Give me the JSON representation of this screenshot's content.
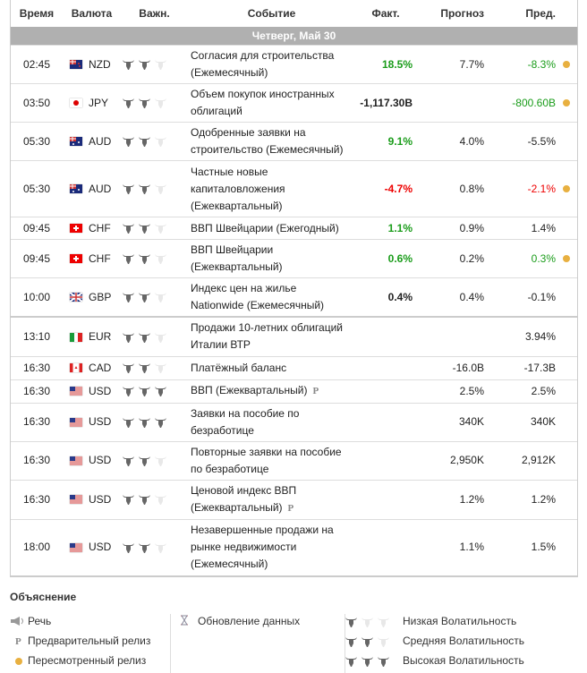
{
  "headers": {
    "time": "Время",
    "currency": "Валюта",
    "importance": "Важн.",
    "event": "Событие",
    "actual": "Факт.",
    "forecast": "Прогноз",
    "previous": "Пред."
  },
  "day": "Четверг, Май 30",
  "colors": {
    "green": "#1a9c1a",
    "red": "#e00000",
    "revised_dot": "#e8b040",
    "bull_on": "#666666",
    "bull_off": "#e8e8e8"
  },
  "rows": [
    {
      "time": "02:45",
      "currency": "NZD",
      "flag": "nz",
      "bulls": 2,
      "event": "Согласия для строительства (Ежемесячный)",
      "actual": "18.5%",
      "actual_color": "green",
      "forecast": "7.7%",
      "previous": "-8.3%",
      "previous_color": "green",
      "revised": true
    },
    {
      "time": "03:50",
      "currency": "JPY",
      "flag": "jp",
      "bulls": 2,
      "event": "Объем покупок иностранных облигаций",
      "actual": "-1,117.30B",
      "actual_color": "",
      "forecast": "",
      "previous": "-800.60B",
      "previous_color": "green",
      "revised": true
    },
    {
      "time": "05:30",
      "currency": "AUD",
      "flag": "au",
      "bulls": 2,
      "event": "Одобренные заявки на строительство (Ежемесячный)",
      "actual": "9.1%",
      "actual_color": "green",
      "forecast": "4.0%",
      "previous": "-5.5%",
      "previous_color": "",
      "revised": false
    },
    {
      "time": "05:30",
      "currency": "AUD",
      "flag": "au",
      "bulls": 2,
      "event": "Частные новые капиталовложения (Ежеквартальный)",
      "actual": "-4.7%",
      "actual_color": "red",
      "forecast": "0.8%",
      "previous": "-2.1%",
      "previous_color": "red",
      "revised": true
    },
    {
      "time": "09:45",
      "currency": "CHF",
      "flag": "ch",
      "bulls": 2,
      "event": "ВВП Швейцарии (Ежегодный)",
      "actual": "1.1%",
      "actual_color": "green",
      "forecast": "0.9%",
      "previous": "1.4%",
      "previous_color": "",
      "revised": false
    },
    {
      "time": "09:45",
      "currency": "CHF",
      "flag": "ch",
      "bulls": 2,
      "event": "ВВП Швейцарии (Ежеквартальный)",
      "actual": "0.6%",
      "actual_color": "green",
      "forecast": "0.2%",
      "previous": "0.3%",
      "previous_color": "green",
      "revised": true
    },
    {
      "time": "10:00",
      "currency": "GBP",
      "flag": "gb",
      "bulls": 2,
      "event": "Индекс цен на жилье Nationwide (Ежемесячный)",
      "actual": "0.4%",
      "actual_color": "",
      "forecast": "0.4%",
      "previous": "-0.1%",
      "previous_color": "",
      "revised": false
    },
    {
      "time": "13:10",
      "currency": "EUR",
      "flag": "it",
      "bulls": 2,
      "event": "Продажи 10-летних облигаций Италии ВТР",
      "actual": "",
      "actual_color": "",
      "forecast": "",
      "previous": "3.94%",
      "previous_color": "",
      "revised": false,
      "thick": true
    },
    {
      "time": "16:30",
      "currency": "CAD",
      "flag": "ca",
      "bulls": 2,
      "event": "Платёжный баланс",
      "actual": "",
      "actual_color": "",
      "forecast": "-16.0B",
      "previous": "-17.3B",
      "previous_color": "",
      "revised": false
    },
    {
      "time": "16:30",
      "currency": "USD",
      "flag": "us",
      "bulls": 3,
      "event": "ВВП (Ежеквартальный)",
      "prelim": "P",
      "actual": "",
      "actual_color": "",
      "forecast": "2.5%",
      "previous": "2.5%",
      "previous_color": "",
      "revised": false
    },
    {
      "time": "16:30",
      "currency": "USD",
      "flag": "us",
      "bulls": 3,
      "event": "Заявки на пособие по безработице",
      "actual": "",
      "actual_color": "",
      "forecast": "340K",
      "previous": "340K",
      "previous_color": "",
      "revised": false
    },
    {
      "time": "16:30",
      "currency": "USD",
      "flag": "us",
      "bulls": 2,
      "event": "Повторные заявки на пособие по безработице",
      "actual": "",
      "actual_color": "",
      "forecast": "2,950K",
      "previous": "2,912K",
      "previous_color": "",
      "revised": false
    },
    {
      "time": "16:30",
      "currency": "USD",
      "flag": "us",
      "bulls": 2,
      "event": "Ценовой индекс ВВП (Ежеквартальный)",
      "prelim": "P",
      "actual": "",
      "actual_color": "",
      "forecast": "1.2%",
      "previous": "1.2%",
      "previous_color": "",
      "revised": false
    },
    {
      "time": "18:00",
      "currency": "USD",
      "flag": "us",
      "bulls": 2,
      "event": "Незавершенные продажи на рынке недвижимости (Ежемесячный)",
      "actual": "",
      "actual_color": "",
      "forecast": "1.1%",
      "previous": "1.5%",
      "previous_color": "",
      "revised": false
    }
  ],
  "legend": {
    "title": "Объяснение",
    "speech": "Речь",
    "preliminary": "Предварительный релиз",
    "preliminary_mark": "P",
    "revised": "Пересмотренный релиз",
    "update": "Обновление данных",
    "low": "Низкая Волатильность",
    "medium": "Средняя Волатильность",
    "high": "Высокая Волатильность"
  }
}
